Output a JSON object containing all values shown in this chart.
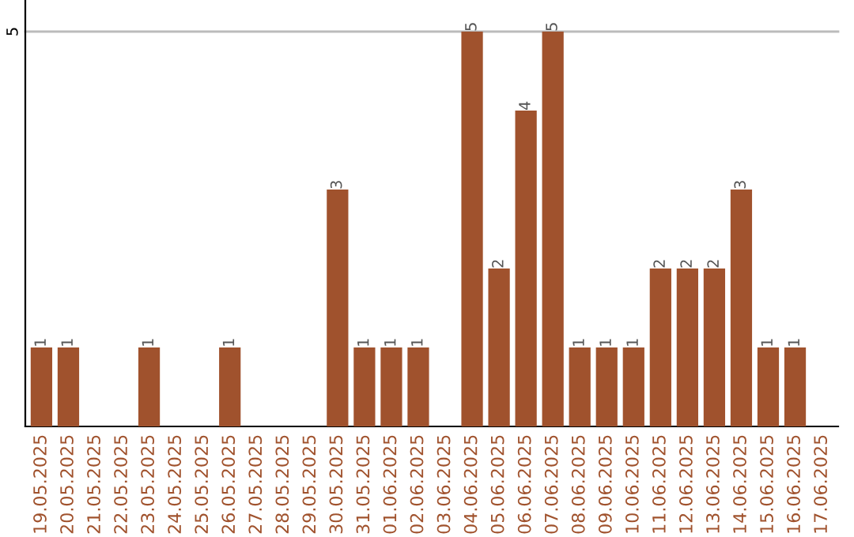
{
  "chart_data": {
    "type": "bar",
    "categories": [
      "19.05.2025",
      "20.05.2025",
      "21.05.2025",
      "22.05.2025",
      "23.05.2025",
      "24.05.2025",
      "25.05.2025",
      "26.05.2025",
      "27.05.2025",
      "28.05.2025",
      "29.05.2025",
      "30.05.2025",
      "31.05.2025",
      "01.06.2025",
      "02.06.2025",
      "03.06.2025",
      "04.06.2025",
      "05.06.2025",
      "06.06.2025",
      "07.06.2025",
      "08.06.2025",
      "09.06.2025",
      "10.06.2025",
      "11.06.2025",
      "12.06.2025",
      "13.06.2025",
      "14.06.2025",
      "15.06.2025",
      "16.06.2025",
      "17.06.2025"
    ],
    "values": [
      1,
      1,
      0,
      0,
      1,
      0,
      0,
      1,
      0,
      0,
      0,
      3,
      1,
      1,
      1,
      0,
      5,
      2,
      4,
      5,
      1,
      1,
      1,
      2,
      2,
      2,
      3,
      1,
      1,
      0
    ],
    "value_labels": [
      "1",
      "1",
      null,
      null,
      "1",
      null,
      null,
      "1",
      null,
      null,
      null,
      "3",
      "1",
      "1",
      "1",
      null,
      "5",
      "2",
      "4",
      "5",
      "1",
      "1",
      "1",
      "2",
      "2",
      "2",
      "3",
      "1",
      "1",
      null
    ],
    "color": "#a0522d",
    "ylim": [
      0,
      5.4
    ],
    "yticks": [
      5
    ],
    "grid": "y"
  }
}
